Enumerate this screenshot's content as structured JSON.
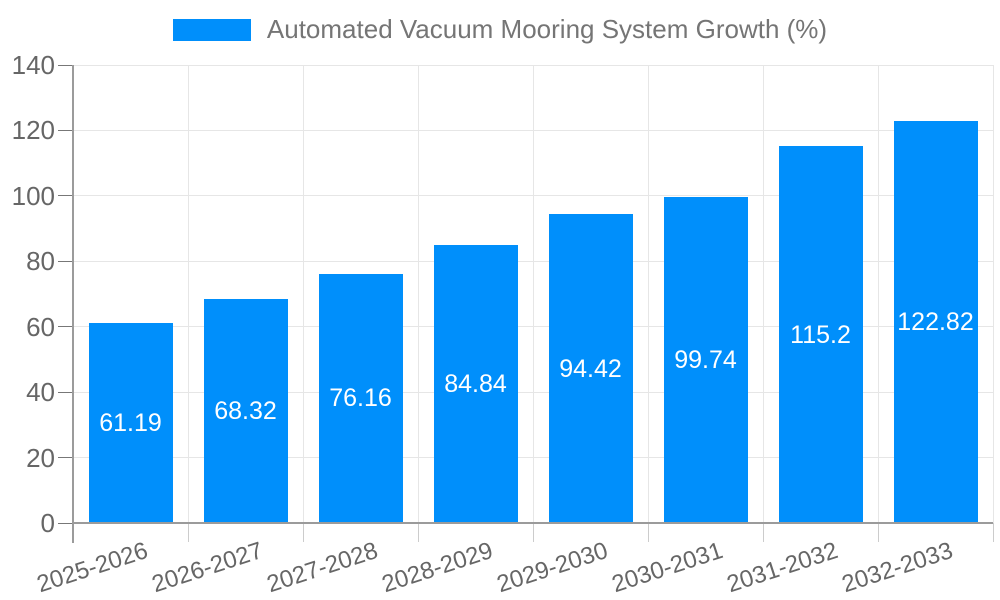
{
  "chart_data": {
    "type": "bar",
    "title": "Automated Vacuum Mooring System Growth (%)",
    "categories": [
      "2025-2026",
      "2026-2027",
      "2027-2028",
      "2028-2029",
      "2029-2030",
      "2030-2031",
      "2031-2032",
      "2032-2033"
    ],
    "values": [
      61.19,
      68.32,
      76.16,
      84.84,
      94.42,
      99.74,
      115.2,
      122.82
    ],
    "value_labels": [
      "61.19",
      "68.32",
      "76.16",
      "84.84",
      "94.42",
      "99.74",
      "115.2",
      "122.82"
    ],
    "xlabel": "",
    "ylabel": "",
    "ylim": [
      0,
      140
    ],
    "y_ticks": [
      "0",
      "20",
      "40",
      "60",
      "80",
      "100",
      "120",
      "140"
    ],
    "grid": "on",
    "legend_position": "top-center",
    "colors": {
      "bar": "#008FFB",
      "value_label": "#ffffff",
      "axis": "#9b9b9b",
      "y_tick_mark": "#777777",
      "x_tick_mark": "#cccccc",
      "grid": "#e6e6e6",
      "tick_text": "#666666",
      "legend_text": "#757575",
      "background": "#ffffff"
    }
  }
}
